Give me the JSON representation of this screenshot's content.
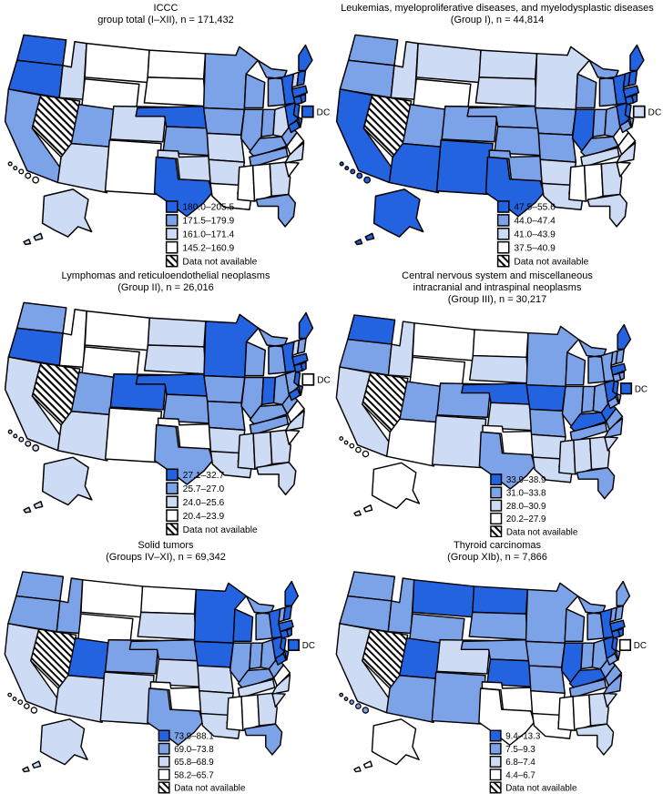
{
  "figure": {
    "description_label": "Six U.S. state choropleth maps of pediatric cancer incidence"
  },
  "chart_data": {
    "type": "heatmap",
    "subtype": "us-state-choropleth-small-multiples",
    "colors": {
      "q1": "#2463e0",
      "q2": "#7ca2e8",
      "q3": "#cddbf5",
      "q4": "#ffffff"
    },
    "outline_color": "#000000",
    "na_label": "Data not available",
    "dc_label": "DC",
    "panels": [
      {
        "title_lines": [
          "ICCC",
          "group total (I–XII), n = 171,432"
        ],
        "legend_bins": [
          "180.0–205.5",
          "171.5–179.9",
          "161.0–171.4",
          "145.2–160.9"
        ],
        "dc_class": "q1",
        "states": {
          "WA": "q1",
          "OR": "q1",
          "CA": "q2",
          "NV": "na",
          "ID": "q3",
          "MT": "q4",
          "WY": "q4",
          "UT": "q2",
          "CO": "q3",
          "AZ": "q3",
          "NM": "q4",
          "ND": "q4",
          "SD": "q4",
          "NE": "q1",
          "KS": "q2",
          "OK": "q3",
          "TX": "q1",
          "MN": "q2",
          "IA": "q2",
          "MO": "q3",
          "AR": "q3",
          "LA": "q4",
          "WI": "q2",
          "IL": "q2",
          "MI": "q2",
          "IN": "q2",
          "OH": "q3",
          "KY": "q2",
          "TN": "q2",
          "MS": "q4",
          "AL": "q4",
          "GA": "q3",
          "FL": "q2",
          "SC": "q4",
          "NC": "q3",
          "VA": "q4",
          "WV": "q2",
          "PA": "q1",
          "NY": "q1",
          "NJ": "q1",
          "MD": "q1",
          "DE": "q1",
          "VT": "q3",
          "NH": "q1",
          "ME": "q1",
          "MA": "q1",
          "CT": "q1",
          "RI": "q1",
          "AK": "q3",
          "HI": "q4",
          "DC": "q1"
        }
      },
      {
        "title_lines": [
          "Leukemias, myeloproliferative diseases, and myelodysplastic diseases",
          "(Group I), n = 44,814"
        ],
        "legend_bins": [
          "47.5–55.6",
          "44.0–47.4",
          "41.0–43.9",
          "37.5–40.9"
        ],
        "dc_class": "q3",
        "states": {
          "WA": "q2",
          "OR": "q2",
          "CA": "q1",
          "NV": "na",
          "ID": "q3",
          "MT": "q3",
          "WY": "q4",
          "UT": "q2",
          "CO": "q2",
          "AZ": "q1",
          "NM": "q1",
          "ND": "q3",
          "SD": "q3",
          "NE": "q2",
          "KS": "q2",
          "OK": "q2",
          "TX": "q1",
          "MN": "q3",
          "IA": "q2",
          "MO": "q2",
          "AR": "q3",
          "LA": "q3",
          "WI": "q2",
          "IL": "q1",
          "MI": "q2",
          "IN": "q2",
          "OH": "q2",
          "KY": "q2",
          "TN": "q3",
          "MS": "q4",
          "AL": "q4",
          "GA": "q3",
          "FL": "q3",
          "SC": "q4",
          "NC": "q3",
          "VA": "q4",
          "WV": "q4",
          "PA": "q1",
          "NY": "q1",
          "NJ": "q1",
          "MD": "q2",
          "DE": "q2",
          "VT": "q1",
          "NH": "q1",
          "ME": "q1",
          "MA": "q1",
          "CT": "q1",
          "RI": "q1",
          "AK": "q1",
          "HI": "q1",
          "DC": "q3"
        }
      },
      {
        "title_lines": [
          "Lymphomas and reticuloendothelial neoplasms",
          "(Group II), n = 26,016"
        ],
        "legend_bins": [
          "27.1–32.7",
          "25.7–27.0",
          "24.0–25.6",
          "20.4–23.9"
        ],
        "dc_class": "q4",
        "states": {
          "WA": "q2",
          "OR": "q1",
          "CA": "q3",
          "NV": "na",
          "ID": "q4",
          "MT": "q4",
          "WY": "q4",
          "UT": "q2",
          "CO": "q1",
          "AZ": "q3",
          "NM": "q4",
          "ND": "q3",
          "SD": "q3",
          "NE": "q1",
          "KS": "q2",
          "OK": "q4",
          "TX": "q2",
          "MN": "q1",
          "IA": "q2",
          "MO": "q2",
          "AR": "q3",
          "LA": "q3",
          "WI": "q2",
          "IL": "q2",
          "MI": "q2",
          "IN": "q1",
          "OH": "q2",
          "KY": "q2",
          "TN": "q2",
          "MS": "q3",
          "AL": "q3",
          "GA": "q3",
          "FL": "q3",
          "SC": "q4",
          "NC": "q3",
          "VA": "q4",
          "WV": "q2",
          "PA": "q2",
          "NY": "q1",
          "NJ": "q1",
          "MD": "q1",
          "DE": "q1",
          "VT": "q3",
          "NH": "q2",
          "ME": "q1",
          "MA": "q1",
          "CT": "q1",
          "RI": "q1",
          "AK": "q3",
          "HI": "q3",
          "DC": "q4"
        }
      },
      {
        "title_lines": [
          "Central nervous system and miscellaneous",
          "intracranial and intraspinal neoplasms",
          "(Group III), n = 30,217"
        ],
        "legend_bins": [
          "33.9–38.9",
          "31.0–33.8",
          "28.0–30.9",
          "20.2–27.9"
        ],
        "dc_class": "q1",
        "states": {
          "WA": "q1",
          "OR": "q2",
          "CA": "q3",
          "NV": "na",
          "ID": "q3",
          "MT": "q4",
          "WY": "q4",
          "UT": "q2",
          "CO": "q2",
          "AZ": "q4",
          "NM": "q3",
          "ND": "q4",
          "SD": "q3",
          "NE": "q1",
          "KS": "q3",
          "OK": "q4",
          "TX": "q2",
          "MN": "q2",
          "IA": "q1",
          "MO": "q2",
          "AR": "q3",
          "LA": "q3",
          "WI": "q2",
          "IL": "q2",
          "MI": "q2",
          "IN": "q2",
          "OH": "q2",
          "KY": "q1",
          "TN": "q2",
          "MS": "q3",
          "AL": "q3",
          "GA": "q3",
          "FL": "q2",
          "SC": "q3",
          "NC": "q2",
          "VA": "q2",
          "WV": "q1",
          "PA": "q1",
          "NY": "q2",
          "NJ": "q1",
          "MD": "q2",
          "DE": "q2",
          "VT": "q2",
          "NH": "q2",
          "ME": "q1",
          "MA": "q1",
          "CT": "q2",
          "RI": "q2",
          "AK": "q4",
          "HI": "q4",
          "DC": "q1"
        }
      },
      {
        "title_lines": [
          "Solid tumors",
          "(Groups IV–XI), n = 69,342"
        ],
        "legend_bins": [
          "73.9–88.1",
          "69.0–73.8",
          "65.8–68.9",
          "58.2–65.7"
        ],
        "dc_class": "q1",
        "states": {
          "WA": "q2",
          "OR": "q2",
          "CA": "q3",
          "NV": "na",
          "ID": "q2",
          "MT": "q4",
          "WY": "q4",
          "UT": "q1",
          "CO": "q2",
          "AZ": "q3",
          "NM": "q3",
          "ND": "q4",
          "SD": "q3",
          "NE": "q2",
          "KS": "q3",
          "OK": "q4",
          "TX": "q2",
          "MN": "q1",
          "IA": "q1",
          "MO": "q3",
          "AR": "q3",
          "LA": "q3",
          "WI": "q1",
          "IL": "q2",
          "MI": "q2",
          "IN": "q2",
          "OH": "q2",
          "KY": "q2",
          "TN": "q3",
          "MS": "q4",
          "AL": "q4",
          "GA": "q3",
          "FL": "q2",
          "SC": "q3",
          "NC": "q3",
          "VA": "q4",
          "WV": "q2",
          "PA": "q1",
          "NY": "q1",
          "NJ": "q1",
          "MD": "q1",
          "DE": "q1",
          "VT": "q2",
          "NH": "q1",
          "ME": "q1",
          "MA": "q1",
          "CT": "q1",
          "RI": "q1",
          "AK": "q3",
          "HI": "q4",
          "DC": "q1"
        }
      },
      {
        "title_lines": [
          "Thyroid carcinomas",
          "(Group XIb), n = 7,866"
        ],
        "legend_bins": [
          "9.4–13.3",
          "7.5–9.3",
          "6.8–7.4",
          "4.4–6.7"
        ],
        "dc_class": "q4",
        "states": {
          "WA": "q2",
          "OR": "q2",
          "CA": "q3",
          "NV": "na",
          "ID": "q2",
          "MT": "q1",
          "WY": "q2",
          "UT": "q1",
          "CO": "q3",
          "AZ": "q2",
          "NM": "q2",
          "ND": "q1",
          "SD": "q2",
          "NE": "q2",
          "KS": "q1",
          "OK": "q4",
          "TX": "q4",
          "MN": "q2",
          "IA": "q2",
          "MO": "q2",
          "AR": "q4",
          "LA": "q4",
          "WI": "q2",
          "IL": "q1",
          "MI": "q2",
          "IN": "q2",
          "OH": "q2",
          "KY": "q1",
          "TN": "q2",
          "MS": "q4",
          "AL": "q4",
          "GA": "q3",
          "FL": "q3",
          "SC": "q3",
          "NC": "q2",
          "VA": "q2",
          "WV": "q2",
          "PA": "q1",
          "NY": "q1",
          "NJ": "q1",
          "MD": "q2",
          "DE": "q2",
          "VT": "q2",
          "NH": "q2",
          "ME": "q2",
          "MA": "q1",
          "CT": "q1",
          "RI": "q1",
          "AK": "q4",
          "HI": "q2",
          "DC": "q4"
        }
      }
    ]
  }
}
